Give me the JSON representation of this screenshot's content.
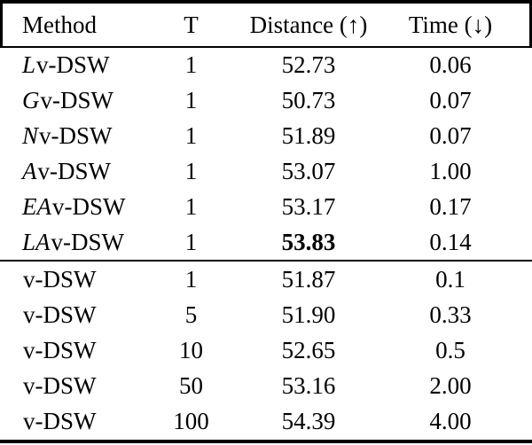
{
  "page": {
    "background_color": "#ffffff",
    "text_color": "#000000"
  },
  "table": {
    "columns": [
      {
        "label": "Method"
      },
      {
        "label": "T"
      },
      {
        "label": "Distance (↑)"
      },
      {
        "label": "Time (↓)"
      }
    ],
    "sections": [
      {
        "rows": [
          {
            "script": "L",
            "rest": "v-DSW",
            "t": "1",
            "distance": "52.73",
            "time": "0.06",
            "bold_distance": false
          },
          {
            "script": "G",
            "rest": "v-DSW",
            "t": "1",
            "distance": "50.73",
            "time": "0.07",
            "bold_distance": false
          },
          {
            "script": "N",
            "rest": "v-DSW",
            "t": "1",
            "distance": "51.89",
            "time": "0.07",
            "bold_distance": false
          },
          {
            "script": "A",
            "rest": "v-DSW",
            "t": "1",
            "distance": "53.07",
            "time": "1.00",
            "bold_distance": false
          },
          {
            "script": "EA",
            "rest": "v-DSW",
            "t": "1",
            "distance": "53.17",
            "time": "0.17",
            "bold_distance": false
          },
          {
            "script": "LA",
            "rest": "v-DSW",
            "t": "1",
            "distance": "53.83",
            "time": "0.14",
            "bold_distance": true
          }
        ]
      },
      {
        "rows": [
          {
            "script": "",
            "rest": "v-DSW",
            "t": "1",
            "distance": "51.87",
            "time": "0.1",
            "bold_distance": false
          },
          {
            "script": "",
            "rest": "v-DSW",
            "t": "5",
            "distance": "51.90",
            "time": "0.33",
            "bold_distance": false
          },
          {
            "script": "",
            "rest": "v-DSW",
            "t": "10",
            "distance": "52.65",
            "time": "0.5",
            "bold_distance": false
          },
          {
            "script": "",
            "rest": "v-DSW",
            "t": "50",
            "distance": "53.16",
            "time": "2.00",
            "bold_distance": false
          },
          {
            "script": "",
            "rest": "v-DSW",
            "t": "100",
            "distance": "54.39",
            "time": "4.00",
            "bold_distance": false
          }
        ]
      }
    ]
  }
}
